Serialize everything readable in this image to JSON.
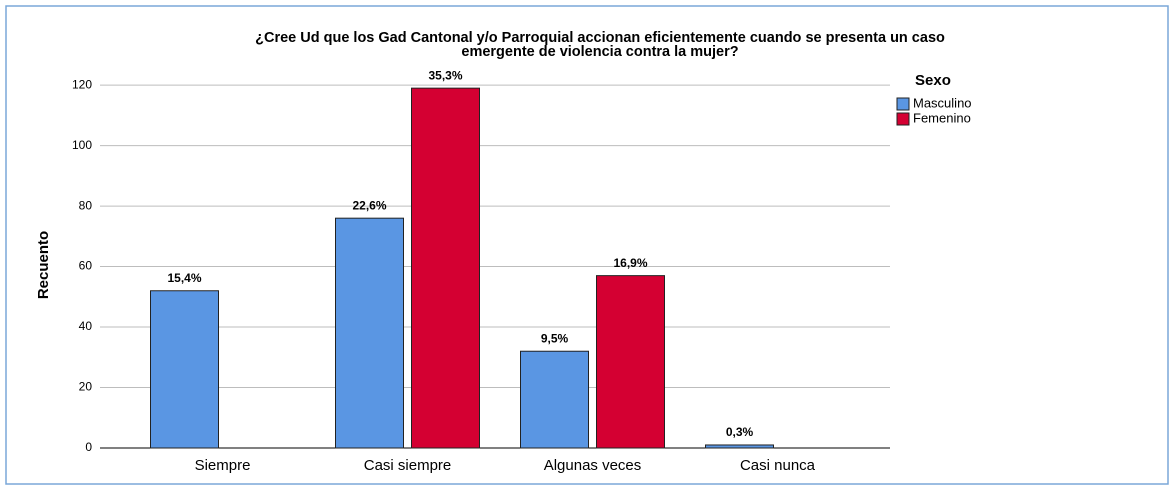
{
  "chart_data": {
    "type": "bar",
    "title": [
      "¿Cree Ud que los Gad Cantonal y/o Parroquial accionan eficientemente cuando se presenta un caso",
      "emergente de violencia contra la mujer?"
    ],
    "y_label": "Recuento",
    "legend_title": "Sexo",
    "categories": [
      "Siempre",
      "Casi siempre",
      "Algunas veces",
      "Casi nunca"
    ],
    "series": [
      {
        "name": "Masculino",
        "color": "#5a96e3",
        "values": [
          52,
          76,
          32,
          1
        ],
        "data_labels": [
          "15,4%",
          "22,6%",
          "9,5%",
          "0,3%"
        ]
      },
      {
        "name": "Femenino",
        "color": "#d40032",
        "values": [
          null,
          119,
          57,
          null
        ],
        "data_labels": [
          null,
          "35,3%",
          "16,9%",
          null
        ]
      }
    ],
    "ylim": [
      0,
      125
    ],
    "yticks": [
      0,
      20,
      40,
      60,
      80,
      100,
      120
    ],
    "grid": true,
    "legend": "right"
  }
}
